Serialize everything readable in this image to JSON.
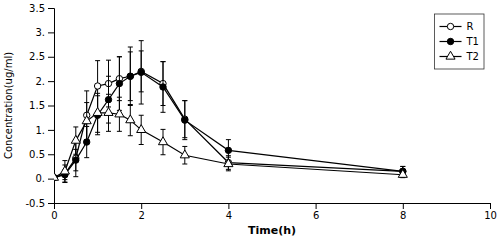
{
  "chart_data": {
    "type": "line",
    "xlabel": "Time(h)",
    "ylabel": "Concentration(ug/ml)",
    "xlim": [
      0,
      10
    ],
    "ylim": [
      -0.5,
      3.5
    ],
    "xticks": [
      0,
      2,
      4,
      6,
      8,
      10
    ],
    "yticks": [
      -0.5,
      {
        "value": 0.0,
        "label": "0."
      },
      0.5,
      {
        "value": 1.0,
        "label": "1."
      },
      1.5,
      {
        "value": 2.0,
        "label": "2."
      },
      2.5,
      {
        "value": 3.0,
        "label": "3."
      },
      3.5
    ],
    "x": [
      0,
      0.25,
      0.5,
      0.75,
      1.0,
      1.25,
      1.5,
      1.75,
      2.0,
      2.5,
      3.0,
      4.0,
      8.0
    ],
    "series": [
      {
        "name": "R",
        "color": "#000000",
        "marker": "open-circle",
        "line_style": "solid",
        "values": [
          0.02,
          0.1,
          0.42,
          1.3,
          1.9,
          1.95,
          2.05,
          2.1,
          2.2,
          1.95,
          1.22,
          0.33,
          0.15
        ],
        "yerr": [
          0.0,
          0.18,
          0.38,
          0.5,
          0.52,
          0.48,
          0.45,
          0.5,
          0.42,
          0.45,
          0.38,
          0.14,
          0.1
        ]
      },
      {
        "name": "T1",
        "color": "#000000",
        "marker": "circle",
        "line_style": "solid",
        "values": [
          0.02,
          0.08,
          0.38,
          0.75,
          1.3,
          1.62,
          1.95,
          2.1,
          2.18,
          1.88,
          1.2,
          0.58,
          0.15
        ],
        "yerr": [
          0.0,
          0.1,
          0.22,
          0.32,
          0.4,
          0.48,
          0.55,
          0.6,
          0.65,
          0.52,
          0.4,
          0.22,
          0.1
        ]
      },
      {
        "name": "T2",
        "color": "#000000",
        "marker": "open-triangle",
        "line_style": "solid",
        "values": [
          0.02,
          0.15,
          0.78,
          1.18,
          1.35,
          1.35,
          1.32,
          1.2,
          1.0,
          0.75,
          0.48,
          0.3,
          0.08
        ],
        "yerr": [
          0.0,
          0.22,
          0.28,
          0.38,
          0.4,
          0.38,
          0.35,
          0.32,
          0.3,
          0.26,
          0.18,
          0.14,
          0.06
        ]
      }
    ],
    "legend": "upper right",
    "grid": false
  }
}
